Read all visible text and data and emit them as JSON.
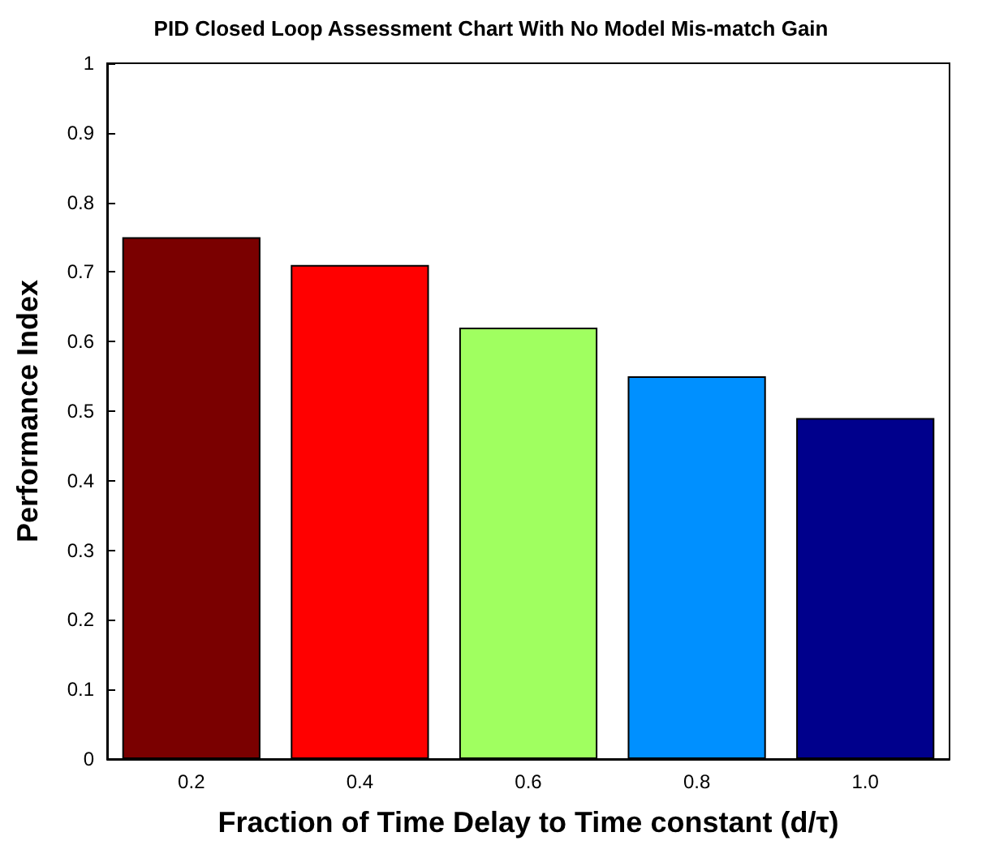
{
  "chart_data": {
    "type": "bar",
    "title": "PID Closed Loop Assessment Chart With No Model Mis-match Gain",
    "xlabel": "Fraction of Time Delay to Time constant (d/τ)",
    "ylabel": "Performance Index",
    "categories": [
      "0.2",
      "0.4",
      "0.6",
      "0.8",
      "1.0"
    ],
    "values": [
      0.75,
      0.71,
      0.62,
      0.55,
      0.49
    ],
    "colors": [
      "#7a0000",
      "#ff0000",
      "#a0ff60",
      "#0090ff",
      "#00008c"
    ],
    "ylim": [
      0,
      1
    ],
    "yticks": [
      0,
      0.1,
      0.2,
      0.3,
      0.4,
      0.5,
      0.6,
      0.7,
      0.8,
      0.9,
      1
    ],
    "grid": false
  }
}
